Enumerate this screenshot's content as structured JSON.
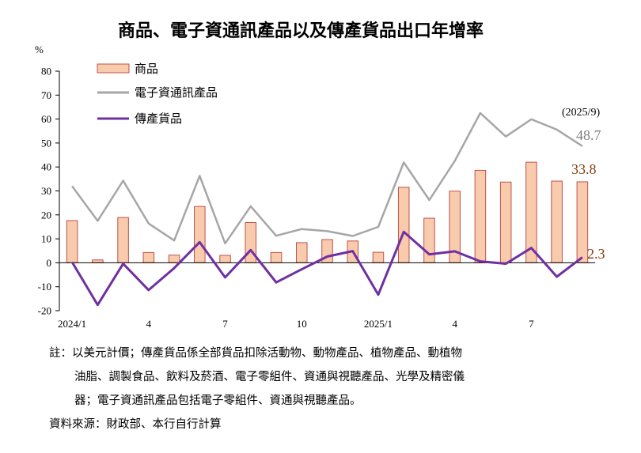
{
  "chart_data": {
    "type": "bar",
    "title": "商品、電子資通訊產品以及傳產貨品出口年增率",
    "ylabel": "%",
    "ylim": [
      -20,
      80
    ],
    "yticks": [
      80,
      70,
      60,
      50,
      40,
      30,
      20,
      10,
      0,
      -10,
      -20
    ],
    "categories": [
      "2024/1",
      "2024/2",
      "2024/3",
      "2024/4",
      "2024/5",
      "2024/6",
      "2024/7",
      "2024/8",
      "2024/9",
      "2024/10",
      "2024/11",
      "2024/12",
      "2025/1",
      "2025/2",
      "2025/3",
      "2025/4",
      "2025/5",
      "2025/6",
      "2025/7",
      "2025/8",
      "2025/9"
    ],
    "xtick_labels": [
      "2024/1",
      "",
      "",
      "4",
      "",
      "",
      "7",
      "",
      "",
      "10",
      "",
      "",
      "2025/1",
      "",
      "",
      "4",
      "",
      "",
      "7",
      "",
      ""
    ],
    "series": [
      {
        "name": "商品",
        "kind": "bar",
        "color": "#F8CBAD",
        "edge": "#C0504D",
        "values": [
          17.6,
          1.2,
          18.9,
          4.3,
          3.2,
          23.5,
          3.1,
          16.8,
          4.3,
          8.4,
          9.7,
          9.1,
          4.4,
          31.5,
          18.6,
          29.9,
          38.6,
          33.7,
          42.0,
          34.1,
          33.8
        ]
      },
      {
        "name": "電子資通訊產品",
        "kind": "line",
        "color": "#A6A6A6",
        "values": [
          32.0,
          17.5,
          34.3,
          16.4,
          9.3,
          36.3,
          8.1,
          23.6,
          11.3,
          14.1,
          13.2,
          11.2,
          15.0,
          41.9,
          26.2,
          42.5,
          62.5,
          52.7,
          59.9,
          55.6,
          48.7
        ]
      },
      {
        "name": "傳產貨品",
        "kind": "line",
        "color": "#7030A0",
        "values": [
          0.3,
          -17.6,
          -0.4,
          -11.4,
          -2.2,
          8.6,
          -6.1,
          5.3,
          -8.2,
          -2.7,
          2.6,
          4.9,
          -13.3,
          12.9,
          3.5,
          4.8,
          0.6,
          -0.4,
          6.2,
          -5.8,
          2.3
        ]
      }
    ],
    "annotations": {
      "period": "(2025/9)",
      "electronics_last": "48.7",
      "goods_last": "33.8",
      "traditional_last": "2.3"
    },
    "legend_position": "top-left",
    "grid": false
  },
  "notes": {
    "line1": "註：以美元計價；傳產貨品係全部貨品扣除活動物、動物產品、植物產品、動植物",
    "line2": "油脂、調製食品、飲料及菸酒、電子零組件、資通與視聽產品、光學及精密儀",
    "line3": "器；電子資通訊產品包括電子零組件、資通與視聽產品。",
    "source": "資料來源：財政部、本行自行計算"
  }
}
